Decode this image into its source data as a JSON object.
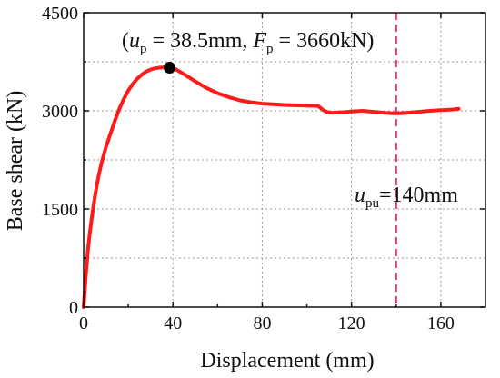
{
  "chart_data": {
    "type": "line",
    "xlabel": "Displacement (mm)",
    "ylabel": "Base shear  (kN)",
    "xlim": [
      0,
      180
    ],
    "ylim": [
      0,
      4500
    ],
    "x_ticks": [
      0,
      40,
      80,
      120,
      160
    ],
    "y_ticks": [
      0,
      1500,
      3000,
      4500
    ],
    "grid": true,
    "series": [
      {
        "color": "#ff1a1a",
        "x": [
          0,
          1,
          2,
          3,
          4,
          5,
          6,
          7,
          8,
          10,
          12,
          14,
          16,
          18,
          20,
          22,
          24,
          26,
          28,
          30,
          32,
          34,
          36,
          38.5,
          41,
          45,
          50,
          55,
          60,
          65,
          70,
          75,
          80,
          85,
          90,
          95,
          100,
          105,
          107,
          109,
          111,
          115,
          120,
          125,
          130,
          135,
          140,
          145,
          150,
          155,
          160,
          165,
          168
        ],
        "y": [
          0,
          500,
          900,
          1200,
          1450,
          1680,
          1880,
          2050,
          2200,
          2450,
          2650,
          2850,
          3030,
          3180,
          3310,
          3410,
          3490,
          3550,
          3600,
          3630,
          3650,
          3660,
          3665,
          3660,
          3640,
          3560,
          3450,
          3350,
          3270,
          3210,
          3160,
          3130,
          3110,
          3100,
          3090,
          3085,
          3080,
          3075,
          3020,
          2980,
          2970,
          2975,
          2990,
          3000,
          2985,
          2970,
          2960,
          2970,
          2985,
          3000,
          3010,
          3020,
          3030
        ]
      }
    ],
    "peak_point": {
      "x": 38.5,
      "y": 3660
    },
    "ultimate_line": {
      "x": 140,
      "color": "#e0307a"
    },
    "annotations": {
      "peak": {
        "open": "(",
        "u_var": "u",
        "u_sub": "p",
        "u_text": " = 38.5mm, ",
        "f_var": "F",
        "f_sub": "p",
        "f_text": " = 3660kN)"
      },
      "ultimate": {
        "var": "u",
        "sub": "pu",
        "text": "=140mm"
      }
    }
  }
}
